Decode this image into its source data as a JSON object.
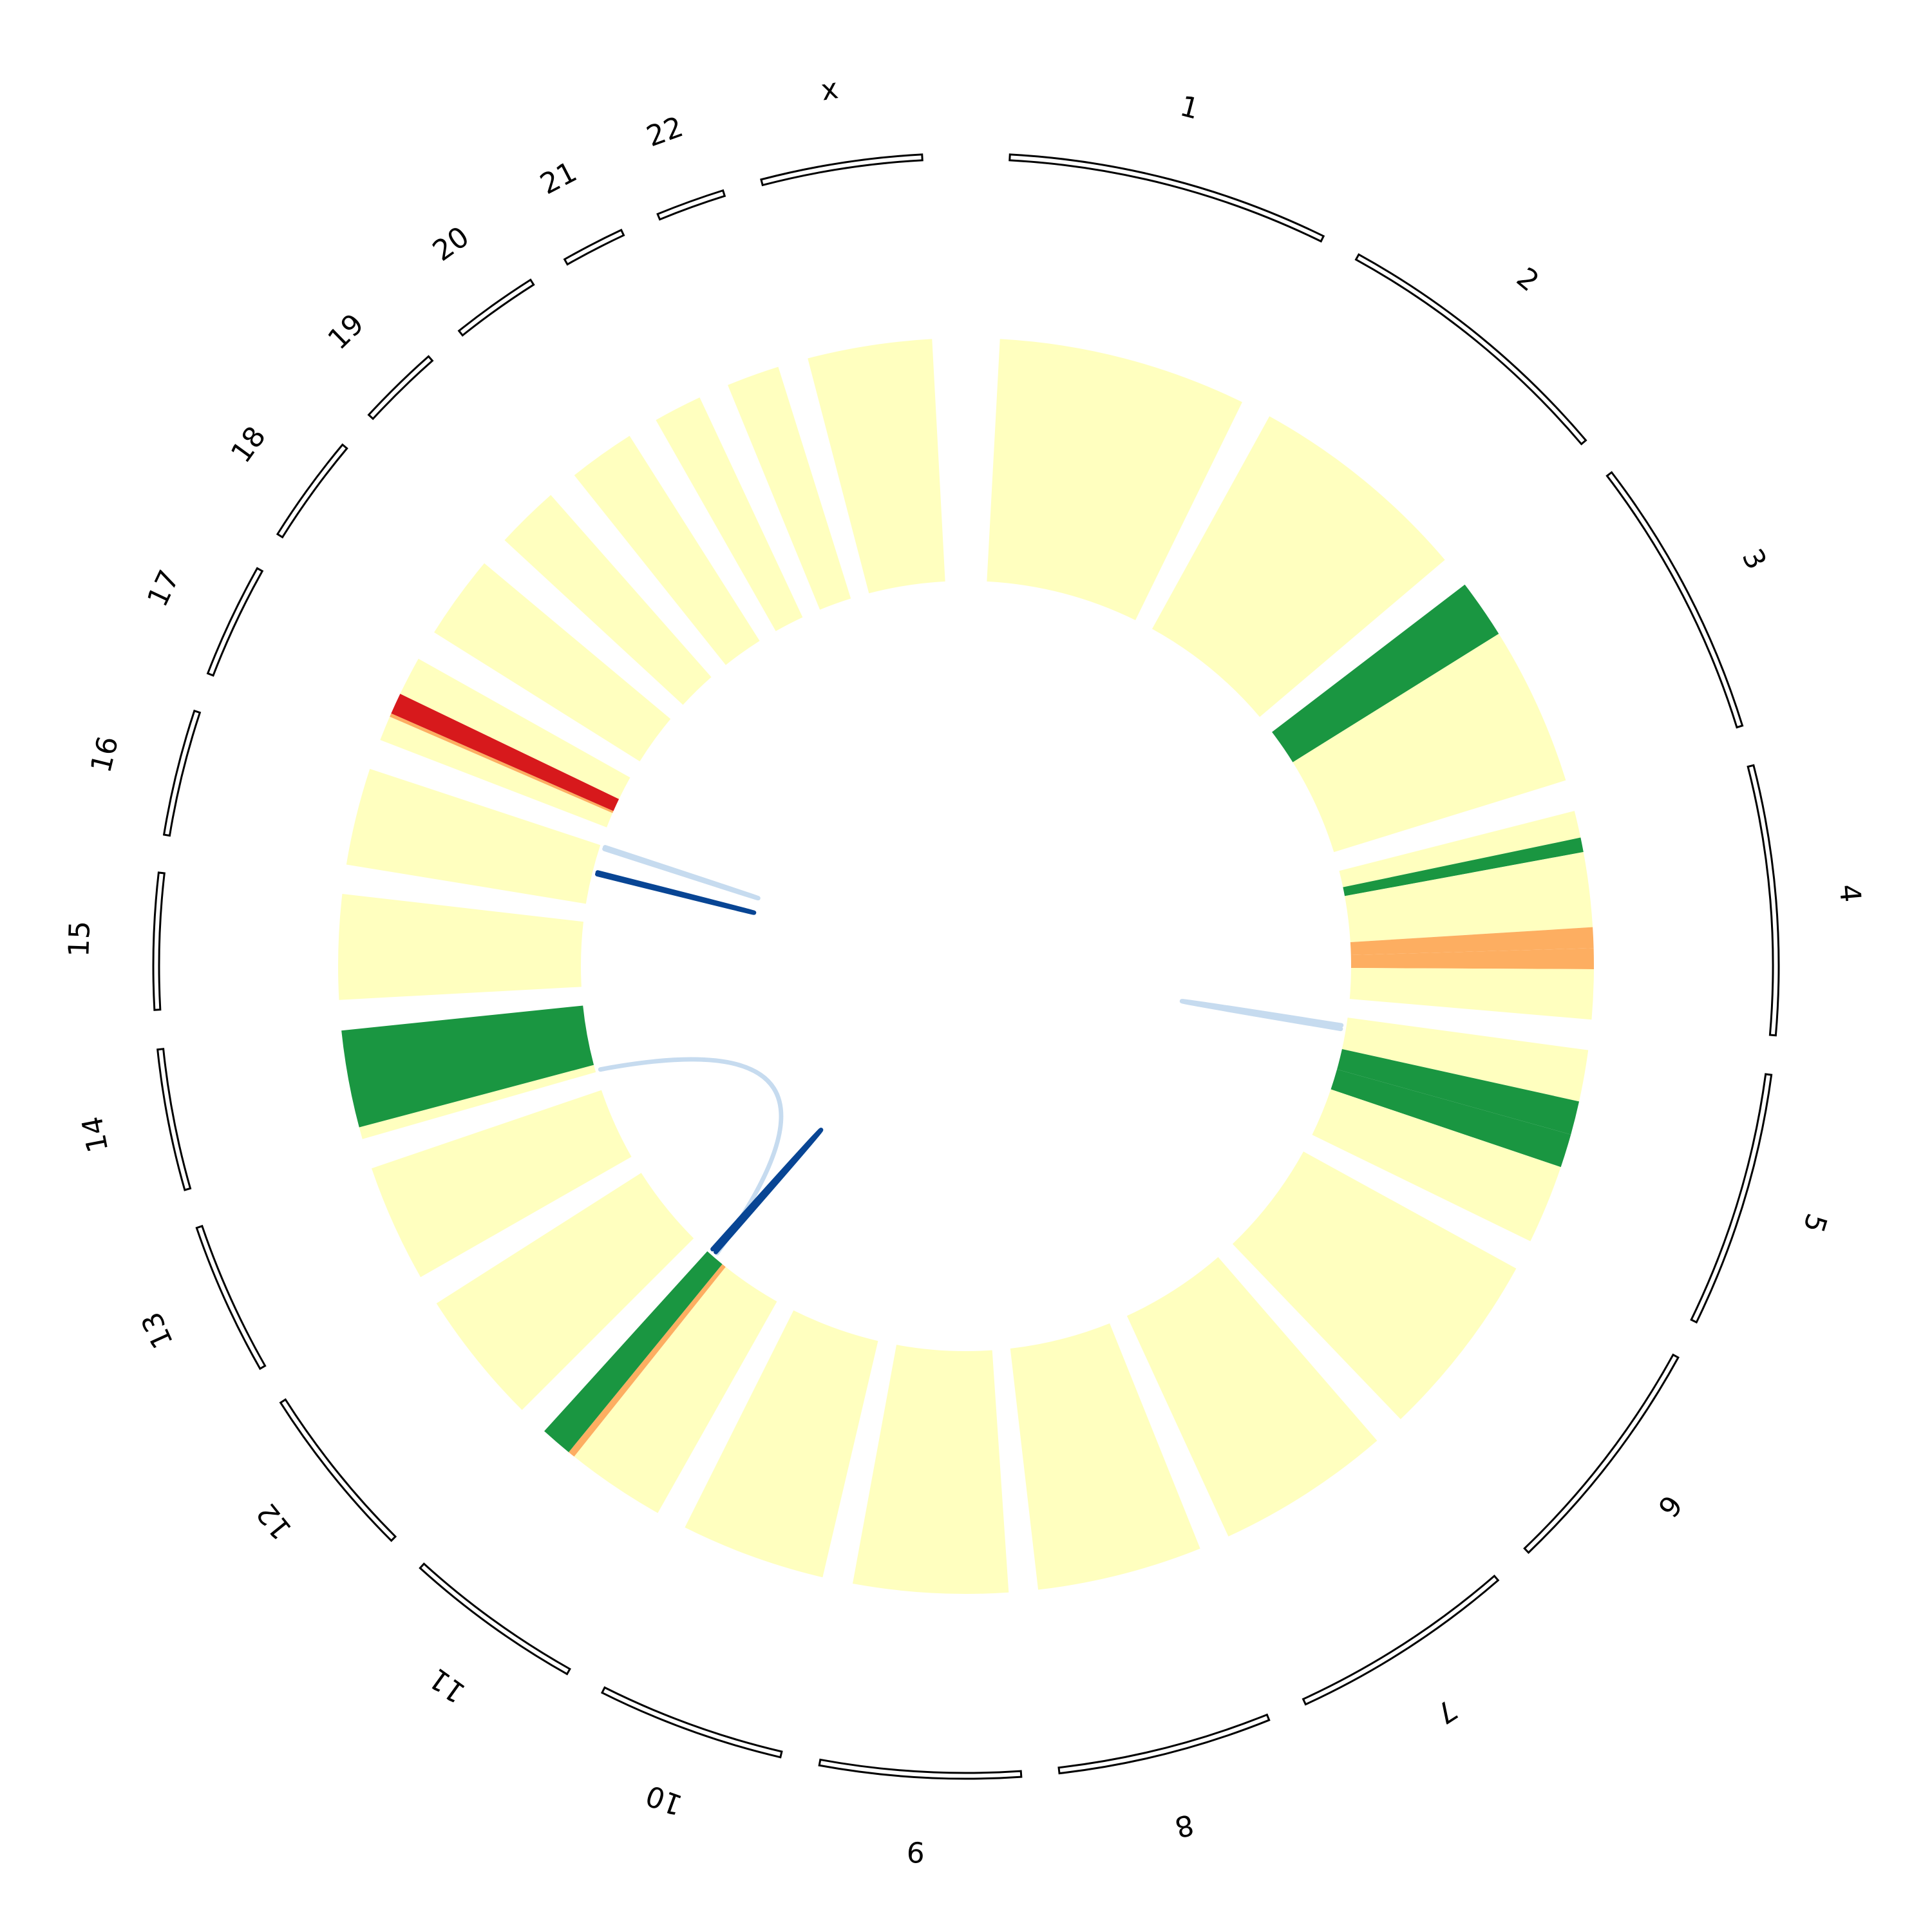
{
  "chromosomes": [
    {
      "label": "1"
    },
    {
      "label": "2"
    },
    {
      "label": "3"
    },
    {
      "label": "4"
    },
    {
      "label": "5"
    },
    {
      "label": "6"
    },
    {
      "label": "7"
    },
    {
      "label": "8"
    },
    {
      "label": "9"
    },
    {
      "label": "10"
    },
    {
      "label": "11"
    },
    {
      "label": "12"
    },
    {
      "label": "13"
    },
    {
      "label": "14"
    },
    {
      "label": "15"
    },
    {
      "label": "16"
    },
    {
      "label": "17"
    },
    {
      "label": "18"
    },
    {
      "label": "19"
    },
    {
      "label": "20"
    },
    {
      "label": "21"
    },
    {
      "label": "22"
    },
    {
      "label": "x"
    }
  ],
  "colors": {
    "neutral": "#ffffbf",
    "gain": "#1a9641",
    "loss_light": "#fdae61",
    "loss": "#d7191c",
    "link_light": "#c6dbef",
    "link_dark": "#084594"
  },
  "heat_track": [
    {
      "chrom": "1",
      "segments": [
        {
          "frac": 1.0,
          "color": "neutral"
        }
      ]
    },
    {
      "chrom": "2",
      "segments": [
        {
          "frac": 1.0,
          "color": "neutral"
        }
      ]
    },
    {
      "chrom": "3",
      "segments": [
        {
          "frac": 0.27,
          "color": "gain"
        },
        {
          "frac": 0.73,
          "color": "neutral"
        }
      ]
    },
    {
      "chrom": "4",
      "segments": [
        {
          "frac": 0.13,
          "color": "neutral"
        },
        {
          "frac": 0.07,
          "color": "gain"
        },
        {
          "frac": 0.36,
          "color": "neutral"
        },
        {
          "frac": 0.1,
          "color": "loss_light"
        },
        {
          "frac": 0.1,
          "color": "loss_light"
        },
        {
          "frac": 0.24,
          "color": "neutral"
        }
      ]
    },
    {
      "chrom": "5",
      "segments": [
        {
          "frac": 0.26,
          "color": "neutral"
        },
        {
          "frac": 0.17,
          "color": "gain"
        },
        {
          "frac": 0.17,
          "color": "gain"
        },
        {
          "frac": 0.4,
          "color": "neutral"
        }
      ]
    },
    {
      "chrom": "6",
      "segments": [
        {
          "frac": 1.0,
          "color": "neutral"
        }
      ]
    },
    {
      "chrom": "7",
      "segments": [
        {
          "frac": 1.0,
          "color": "neutral"
        }
      ]
    },
    {
      "chrom": "8",
      "segments": [
        {
          "frac": 1.0,
          "color": "neutral"
        }
      ]
    },
    {
      "chrom": "9",
      "segments": [
        {
          "frac": 1.0,
          "color": "neutral"
        }
      ]
    },
    {
      "chrom": "10",
      "segments": [
        {
          "frac": 1.0,
          "color": "neutral"
        }
      ]
    },
    {
      "chrom": "11",
      "segments": [
        {
          "frac": 0.72,
          "color": "neutral"
        },
        {
          "frac": 0.05,
          "color": "loss_light"
        },
        {
          "frac": 0.23,
          "color": "gain"
        }
      ]
    },
    {
      "chrom": "12",
      "segments": [
        {
          "frac": 1.0,
          "color": "neutral"
        }
      ]
    },
    {
      "chrom": "13",
      "segments": [
        {
          "frac": 1.0,
          "color": "neutral"
        }
      ]
    },
    {
      "chrom": "14",
      "segments": [
        {
          "frac": 0.11,
          "color": "neutral"
        },
        {
          "frac": 0.89,
          "color": "gain"
        }
      ]
    },
    {
      "chrom": "15",
      "segments": [
        {
          "frac": 1.0,
          "color": "neutral"
        }
      ]
    },
    {
      "chrom": "16",
      "segments": [
        {
          "frac": 1.0,
          "color": "neutral"
        }
      ]
    },
    {
      "chrom": "17",
      "segments": [
        {
          "frac": 0.28,
          "color": "neutral"
        },
        {
          "frac": 0.04,
          "color": "loss_light"
        },
        {
          "frac": 0.24,
          "color": "loss"
        },
        {
          "frac": 0.44,
          "color": "neutral"
        }
      ]
    },
    {
      "chrom": "18",
      "segments": [
        {
          "frac": 1.0,
          "color": "neutral"
        }
      ]
    },
    {
      "chrom": "19",
      "segments": [
        {
          "frac": 1.0,
          "color": "neutral"
        }
      ]
    },
    {
      "chrom": "20",
      "segments": [
        {
          "frac": 1.0,
          "color": "neutral"
        }
      ]
    },
    {
      "chrom": "21",
      "segments": [
        {
          "frac": 1.0,
          "color": "neutral"
        }
      ]
    },
    {
      "chrom": "22",
      "segments": [
        {
          "frac": 1.0,
          "color": "neutral"
        }
      ]
    },
    {
      "chrom": "x",
      "segments": [
        {
          "frac": 1.0,
          "color": "neutral"
        }
      ]
    }
  ],
  "links": [
    {
      "from": "5",
      "from_pos": 0.07,
      "to": "5",
      "to_pos": 0.1,
      "color": "link_light"
    },
    {
      "from": "11",
      "from_pos": 0.9,
      "to": "14",
      "to_pos": 0.02,
      "color": "link_light"
    },
    {
      "from": "11",
      "from_pos": 0.92,
      "to": "11",
      "to_pos": 0.97,
      "color": "link_dark"
    },
    {
      "from": "16",
      "from_pos": 0.99,
      "to": "16",
      "to_pos": 0.96,
      "color": "link_light"
    },
    {
      "from": "16",
      "from_pos": 0.52,
      "to": "16",
      "to_pos": 0.55,
      "color": "link_dark"
    }
  ]
}
